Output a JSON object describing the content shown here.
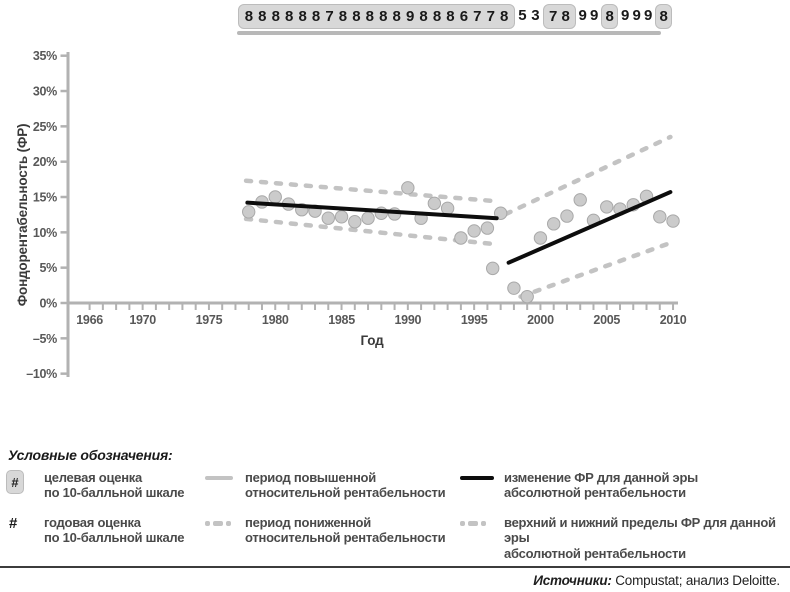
{
  "ratings_row": {
    "description": "annual scores on 10-point scale shown above chart",
    "groups": [
      {
        "boxed": true,
        "values": [
          "8",
          "8",
          "8",
          "8",
          "8",
          "8",
          "7",
          "8",
          "8",
          "8",
          "8",
          "8",
          "9",
          "8",
          "8",
          "8",
          "6",
          "7",
          "7",
          "8"
        ]
      },
      {
        "boxed": false,
        "values": [
          "5",
          "3"
        ]
      },
      {
        "boxed": true,
        "values": [
          "7",
          "8"
        ]
      },
      {
        "boxed": false,
        "values": [
          "9",
          "9"
        ]
      },
      {
        "boxed": true,
        "values": [
          "8"
        ]
      },
      {
        "boxed": false,
        "values": [
          "9",
          "9",
          "9"
        ]
      },
      {
        "boxed": true,
        "values": [
          "8"
        ]
      }
    ]
  },
  "chart_data": {
    "type": "scatter",
    "title": "",
    "xlabel": "Год",
    "ylabel": "Фондорентабельность (ФР)",
    "ylim": [
      -10,
      35
    ],
    "xlim": [
      1964,
      2010.5
    ],
    "grid": false,
    "y_ticks": [
      35,
      30,
      25,
      20,
      15,
      10,
      5,
      0,
      -5,
      -10
    ],
    "y_tick_suffix": "%",
    "x_tick_years": {
      "from": 1966,
      "to": 2010,
      "step": 1
    },
    "x_labeled_years": [
      1966,
      1970,
      1975,
      1980,
      1985,
      1990,
      1995,
      2000,
      2005,
      2010
    ],
    "points": [
      [
        1978,
        12.9
      ],
      [
        1979,
        14.3
      ],
      [
        1980,
        15.0
      ],
      [
        1981,
        14.0
      ],
      [
        1982,
        13.2
      ],
      [
        1983,
        13.0
      ],
      [
        1984,
        12.0
      ],
      [
        1985,
        12.2
      ],
      [
        1986,
        11.5
      ],
      [
        1987,
        12.0
      ],
      [
        1988,
        12.7
      ],
      [
        1989,
        12.6
      ],
      [
        1990,
        16.3
      ],
      [
        1991,
        12.0
      ],
      [
        1992,
        14.1
      ],
      [
        1993,
        13.4
      ],
      [
        1994,
        9.2
      ],
      [
        1995,
        10.2
      ],
      [
        1996,
        10.6
      ],
      [
        1996.4,
        4.9
      ],
      [
        1997,
        12.7
      ],
      [
        1998,
        2.1
      ],
      [
        1999,
        0.9
      ],
      [
        2000,
        9.2
      ],
      [
        2001,
        11.2
      ],
      [
        2002,
        12.3
      ],
      [
        2003,
        14.6
      ],
      [
        2004,
        11.7
      ],
      [
        2005,
        13.6
      ],
      [
        2006,
        13.3
      ],
      [
        2007,
        13.9
      ],
      [
        2008,
        15.1
      ],
      [
        2009,
        12.2
      ],
      [
        2010,
        11.6
      ]
    ],
    "trend_lines": [
      {
        "era": 1,
        "points": [
          [
            1977.9,
            14.2
          ],
          [
            1996.7,
            12.0
          ]
        ]
      },
      {
        "era": 2,
        "points": [
          [
            1997.6,
            5.7
          ],
          [
            2009.8,
            15.7
          ]
        ]
      }
    ],
    "bound_lines": [
      {
        "era": 1,
        "bound": "upper",
        "points": [
          [
            1977.8,
            17.3
          ],
          [
            1996.7,
            14.4
          ]
        ]
      },
      {
        "era": 1,
        "bound": "lower",
        "points": [
          [
            1977.8,
            11.9
          ],
          [
            1996.7,
            8.3
          ]
        ]
      },
      {
        "era": 2,
        "bound": "upper",
        "points": [
          [
            1997.4,
            12.6
          ],
          [
            2009.8,
            23.5
          ]
        ]
      },
      {
        "era": 2,
        "bound": "lower",
        "points": [
          [
            1998.5,
            0.9
          ],
          [
            2009.8,
            8.5
          ]
        ]
      }
    ],
    "relative_period_bar": {
      "from_year": 1977.1,
      "to_year": 2009.1,
      "style": "solid"
    }
  },
  "colors": {
    "axis_grey": "#b2b2b2",
    "dash_grey": "#c3c3c3",
    "black_line": "#0d0d0d",
    "point_fill": "#cbcbcb",
    "point_stroke": "#a8a8a8",
    "box_fill": "#d8d8d8",
    "box_border": "#bcbcbc",
    "period_bar": "#b8b8b8"
  },
  "legend": {
    "title": "Условные обозначения:",
    "hash_symbol": "#",
    "items": [
      {
        "swatch": "target-score-box",
        "label": "целевая оценка\nпо 10-балльной шкале"
      },
      {
        "swatch": "annual-score-hash",
        "label": "годовая оценка\nпо 10-балльной шкале"
      },
      {
        "swatch": "solid-grey-line",
        "label": "период повышенной\nотносительной рентабельности"
      },
      {
        "swatch": "dashed-grey-line",
        "label": "период пониженной\nотносительной рентабельности"
      },
      {
        "swatch": "solid-black-line",
        "label": "изменение ФР для данной эры\nабсолютной рентабельности"
      },
      {
        "swatch": "dashed-grey-line",
        "label": "верхний и нижний пределы ФР для данной эры\nабсолютной рентабельности"
      }
    ]
  },
  "source": {
    "prefix": "Источники:",
    "text": " Compustat; анализ Deloitte."
  }
}
